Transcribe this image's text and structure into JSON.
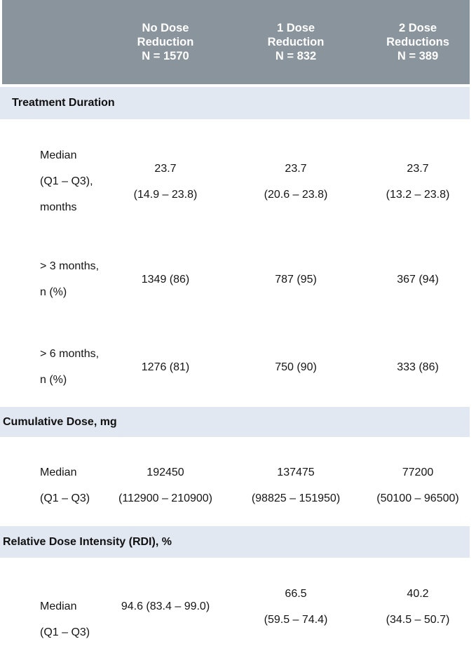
{
  "table": {
    "colors": {
      "header_bg": "#8A949C",
      "header_text": "#FFFFFF",
      "section_bg": "#E1E8F1"
    },
    "column_headers": [
      {
        "line1": "No Dose",
        "line2": "Reduction",
        "line3": "N = 1570"
      },
      {
        "line1": "1 Dose",
        "line2": "Reduction",
        "line3": "N = 832"
      },
      {
        "line1": "2 Dose",
        "line2": "Reductions",
        "line3": "N = 389"
      }
    ],
    "sections": [
      {
        "title": "Treatment Duration",
        "rows": [
          {
            "label_lines": [
              "Median",
              "(Q1 – Q3),",
              "months"
            ],
            "values": [
              [
                "23.7",
                "(14.9 – 23.8)"
              ],
              [
                "23.7",
                "(20.6 – 23.8)"
              ],
              [
                "23.7",
                "(13.2 – 23.8)"
              ]
            ]
          },
          {
            "label_lines": [
              "> 3 months,",
              "n (%)"
            ],
            "values": [
              [
                "1349 (86)"
              ],
              [
                "787 (95)"
              ],
              [
                "367 (94)"
              ]
            ]
          },
          {
            "label_lines": [
              "> 6 months,",
              "n (%)"
            ],
            "values": [
              [
                "1276 (81)"
              ],
              [
                "750 (90)"
              ],
              [
                "333 (86)"
              ]
            ]
          }
        ]
      },
      {
        "title": "Cumulative Dose, mg",
        "rows": [
          {
            "label_lines": [
              "Median",
              "(Q1 – Q3)"
            ],
            "values": [
              [
                "192450",
                "(112900 – 210900)"
              ],
              [
                "137475",
                "(98825 – 151950)"
              ],
              [
                "77200",
                "(50100 – 96500)"
              ]
            ]
          }
        ]
      },
      {
        "title": "Relative Dose Intensity (RDI), %",
        "rows": [
          {
            "label_lines": [
              "Median",
              "(Q1 – Q3)"
            ],
            "values": [
              [
                "94.6 (83.4 – 99.0)"
              ],
              [
                "66.5",
                "(59.5 – 74.4)"
              ],
              [
                "40.2",
                "(34.5 – 50.7)"
              ]
            ]
          }
        ]
      }
    ]
  }
}
